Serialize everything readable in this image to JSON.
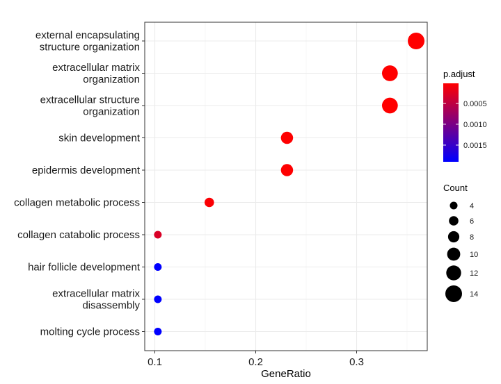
{
  "chart_data": {
    "type": "scatter",
    "xlabel": "GeneRatio",
    "xlim": [
      0.09,
      0.37
    ],
    "x_ticks": [
      0.1,
      0.2,
      0.3
    ],
    "x_tick_labels": [
      "0.1",
      "0.2",
      "0.3"
    ],
    "grid": true,
    "categories": [
      [
        "external encapsulating",
        "structure organization"
      ],
      [
        "extracellular matrix",
        "organization"
      ],
      [
        "extracellular structure",
        "organization"
      ],
      [
        "skin development"
      ],
      [
        "epidermis development"
      ],
      [
        "collagen metabolic process"
      ],
      [
        "collagen catabolic process"
      ],
      [
        "hair follicle development"
      ],
      [
        "extracellular matrix",
        "disassembly"
      ],
      [
        "molting cycle process"
      ]
    ],
    "points": [
      {
        "x": 0.359,
        "count": 14,
        "p_adjust": 2e-05
      },
      {
        "x": 0.333,
        "count": 13,
        "p_adjust": 2e-05
      },
      {
        "x": 0.333,
        "count": 13,
        "p_adjust": 2e-05
      },
      {
        "x": 0.231,
        "count": 9,
        "p_adjust": 3e-05
      },
      {
        "x": 0.231,
        "count": 9,
        "p_adjust": 3e-05
      },
      {
        "x": 0.154,
        "count": 6,
        "p_adjust": 5e-05
      },
      {
        "x": 0.103,
        "count": 4,
        "p_adjust": 0.0003
      },
      {
        "x": 0.103,
        "count": 4,
        "p_adjust": 0.0019
      },
      {
        "x": 0.103,
        "count": 4,
        "p_adjust": 0.0019
      },
      {
        "x": 0.103,
        "count": 4,
        "p_adjust": 0.0019
      }
    ],
    "color_legend": {
      "title": "p.adjust",
      "range": [
        2e-05,
        0.0019
      ],
      "ticks": [
        0.0005,
        0.001,
        0.0015
      ],
      "tick_labels": [
        "0.0005",
        "0.0010",
        "0.0015"
      ],
      "low_color": "#ff0000",
      "high_color": "#0000ff"
    },
    "size_legend": {
      "title": "Count",
      "values": [
        4,
        6,
        8,
        10,
        12,
        14
      ],
      "labels": [
        "4",
        "6",
        "8",
        "10",
        "12",
        "14"
      ]
    },
    "legend_position": "right"
  }
}
